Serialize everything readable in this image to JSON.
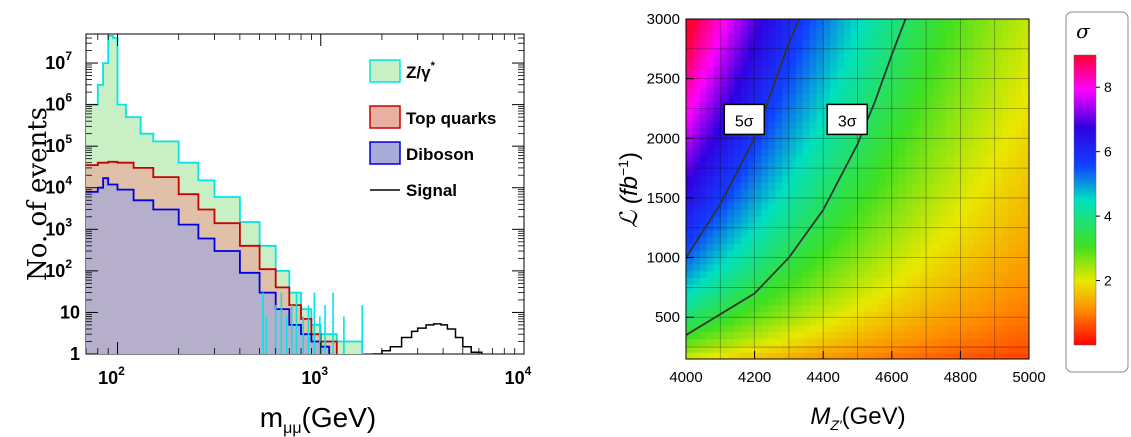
{
  "chart_data": [
    {
      "type": "histogram",
      "xlabel": "m",
      "xlabel_subscript": "μμ",
      "xlabel_unit": "(GeV)",
      "ylabel": "No. of events",
      "xscale": "log",
      "yscale": "log",
      "xlim": [
        70,
        10000
      ],
      "ylim": [
        1,
        50000000
      ],
      "x_ticks": [
        {
          "value": 100,
          "label": "10",
          "exp": "2"
        },
        {
          "value": 1000,
          "label": "10",
          "exp": "3"
        },
        {
          "value": 10000,
          "label": "10",
          "exp": "4"
        }
      ],
      "y_ticks": [
        {
          "value": 1,
          "label": "1",
          "exp": ""
        },
        {
          "value": 10,
          "label": "10",
          "exp": ""
        },
        {
          "value": 100,
          "label": "10",
          "exp": "2"
        },
        {
          "value": 1000,
          "label": "10",
          "exp": "3"
        },
        {
          "value": 10000,
          "label": "10",
          "exp": "4"
        },
        {
          "value": 100000,
          "label": "10",
          "exp": "5"
        },
        {
          "value": 1000000,
          "label": "10",
          "exp": "6"
        },
        {
          "value": 10000000,
          "label": "10",
          "exp": "7"
        }
      ],
      "legend_position": "top-right",
      "series": [
        {
          "name": "Z/γ",
          "name_sup": "*",
          "color": "#00e5e5",
          "fill": "#c8f0c4",
          "x": [
            70,
            80,
            85,
            90,
            95,
            100,
            110,
            130,
            150,
            200,
            250,
            300,
            400,
            500,
            600,
            700,
            800,
            900,
            1000,
            1200,
            1600
          ],
          "y": [
            1000000,
            3000000,
            10000000,
            45000000,
            40000000,
            1000000,
            500000,
            200000,
            130000,
            40000,
            15000,
            6000,
            1500,
            400,
            100,
            30,
            12,
            5,
            3,
            2,
            1
          ]
        },
        {
          "name": "Top quarks",
          "color": "#cc0000",
          "fill": "#e8b0a0",
          "x": [
            70,
            80,
            90,
            100,
            120,
            150,
            200,
            250,
            300,
            400,
            500,
            600,
            700,
            800,
            900,
            1000,
            1200
          ],
          "y": [
            35000,
            40000,
            42000,
            40000,
            30000,
            18000,
            7000,
            3000,
            1400,
            400,
            110,
            40,
            15,
            7,
            3,
            2,
            1
          ]
        },
        {
          "name": "Diboson",
          "color": "#0000dd",
          "fill": "#a8aad8",
          "x": [
            70,
            80,
            85,
            90,
            100,
            120,
            150,
            200,
            250,
            300,
            400,
            500,
            600,
            700,
            800,
            900,
            1000,
            1100
          ],
          "y": [
            8000,
            10000,
            17000,
            12000,
            9000,
            5000,
            3000,
            1300,
            600,
            300,
            90,
            30,
            12,
            5,
            3,
            2,
            1.5,
            1
          ]
        },
        {
          "name": "Signal",
          "color": "#000000",
          "fill": "none",
          "x": [
            1800,
            2000,
            2200,
            2500,
            2800,
            3000,
            3300,
            3600,
            3900,
            4200,
            4600,
            5000,
            5500,
            6200
          ],
          "y": [
            1,
            1.2,
            1.5,
            2.5,
            3.5,
            4.2,
            5,
            5.3,
            5,
            4,
            2.5,
            1.5,
            1.1,
            1
          ]
        }
      ]
    },
    {
      "type": "heatmap",
      "xlabel": "M",
      "xlabel_subscript": "Z′",
      "xlabel_unit": "(GeV)",
      "ylabel": "ℒ (fb",
      "ylabel_sup": "−1",
      "ylabel_close": ")",
      "xlim": [
        4000,
        5000
      ],
      "ylim": [
        150,
        3000
      ],
      "x_ticks": [
        "4000",
        "4200",
        "4400",
        "4600",
        "4800",
        "5000"
      ],
      "y_ticks": [
        "500",
        "1000",
        "1500",
        "2000",
        "2500",
        "3000"
      ],
      "grid": true,
      "colorbar": {
        "title": "σ",
        "range": [
          0,
          9
        ],
        "ticks": [
          "2",
          "4",
          "6",
          "8"
        ]
      },
      "contours": [
        {
          "label": "5σ",
          "level": 5,
          "x": [
            4000,
            4100,
            4200,
            4250,
            4300,
            4330
          ],
          "y": [
            1000,
            1450,
            2000,
            2400,
            2800,
            3000
          ]
        },
        {
          "label": "3σ",
          "level": 3,
          "x": [
            4000,
            4200,
            4300,
            4400,
            4500,
            4550,
            4600,
            4640
          ],
          "y": [
            350,
            700,
            1000,
            1400,
            1950,
            2300,
            2700,
            3000
          ]
        }
      ]
    }
  ]
}
